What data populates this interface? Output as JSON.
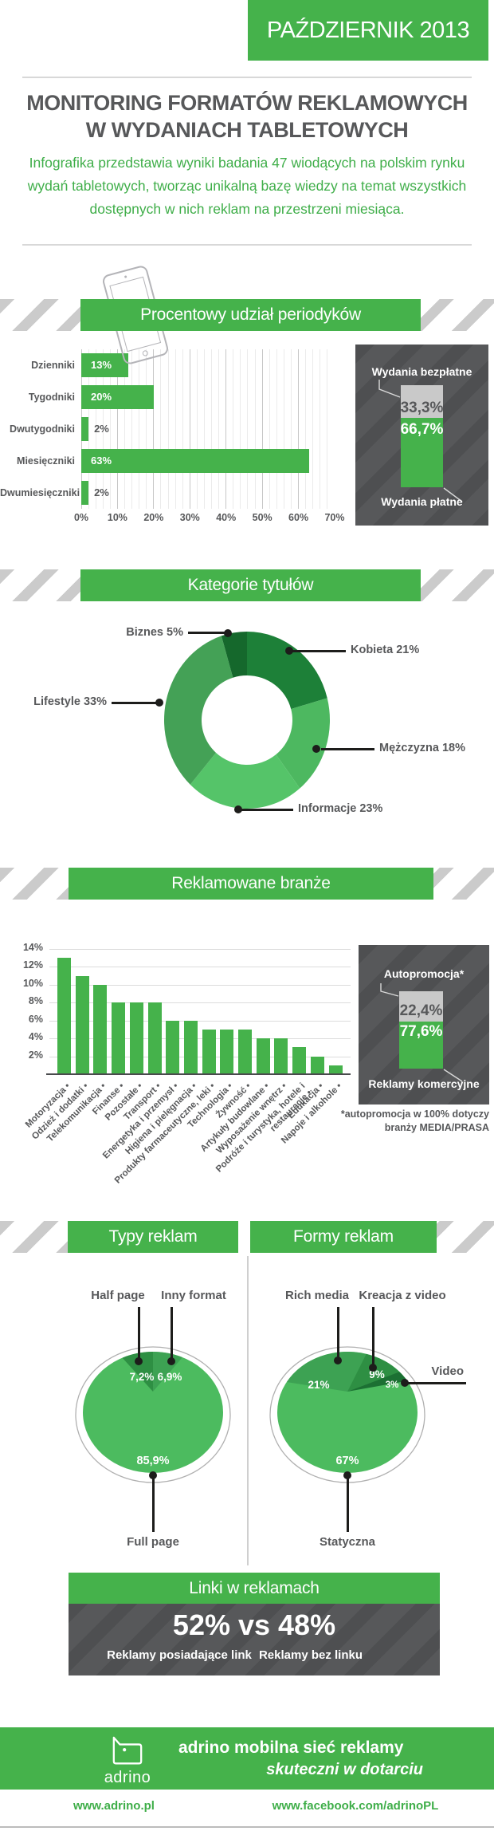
{
  "header": {
    "date_badge": "PAŹDZIERNIK 2013",
    "title_line1": "MONITORING FORMATÓW REKLAMOWYCH",
    "title_line2": "W WYDANIACH TABLETOWYCH",
    "intro": "Infografika przedstawia wyniki badania 47 wiodących na polskim rynku wydań tabletowych, tworząc unikalną bazę wiedzy na temat wszystkich dostępnych w nich reklam na przestrzeni miesiąca."
  },
  "section_titles": {
    "periodicals": "Procentowy udział periodyków",
    "categories": "Kategorie tytułów",
    "industries": "Reklamowane branże",
    "ad_types": "Typy reklam",
    "ad_forms": "Formy reklam",
    "links": "Linki w reklamach"
  },
  "free_paid_panel": {
    "top_label": "Wydania bezpłatne",
    "top_value": "33,3%",
    "bottom_value": "66,7%",
    "bottom_label": "Wydania płatne"
  },
  "promo_panel": {
    "top_label": "Autopromocja*",
    "top_value": "22,4%",
    "bottom_value": "77,6%",
    "bottom_label": "Reklamy komercyjne",
    "footnote_line1": "*autopromocja w 100% dotyczy",
    "footnote_line2": "branży MEDIA/PRASA"
  },
  "links_section": {
    "stat": "52% vs 48%",
    "left_label": "Reklamy posiadające link",
    "right_label": "Reklamy bez linku"
  },
  "footer": {
    "logo_text": "adrino",
    "tagline_bold": "adrino mobilna sieć reklamy",
    "tagline_italic": "skuteczni w dotarciu",
    "site_link": "www.adrino.pl",
    "facebook_link": "www.facebook.com/adrinoPL"
  },
  "colors": {
    "green": "#45b24b",
    "dark": "#57585a",
    "stripe_gray": "#c9c9c9",
    "link_green": "#3fae49"
  },
  "chart_data": [
    {
      "id": "periodicals",
      "type": "bar",
      "orientation": "horizontal",
      "title": "Procentowy udział periodyków",
      "categories": [
        "Dzienniki",
        "Tygodniki",
        "Dwutygodniki",
        "Miesięczniki",
        "Dwumiesięczniki"
      ],
      "values": [
        13,
        20,
        2,
        63,
        2
      ],
      "value_labels": [
        "13%",
        "20%",
        "2%",
        "63%",
        "2%"
      ],
      "xlim": [
        0,
        70
      ],
      "x_ticks": [
        0,
        10,
        20,
        30,
        40,
        50,
        60,
        70
      ],
      "x_tick_labels": [
        "0%",
        "10%",
        "20%",
        "30%",
        "40%",
        "50%",
        "60%",
        "70%"
      ],
      "bar_color": "#45b24b",
      "grid": true
    },
    {
      "id": "free-vs-paid",
      "type": "bar",
      "subtype": "stacked-column",
      "segments": [
        {
          "label": "Wydania bezpłatne",
          "value": 33.3,
          "display": "33,3%",
          "color": "#c9c9c9"
        },
        {
          "label": "Wydania płatne",
          "value": 66.7,
          "display": "66,7%",
          "color": "#45b24b"
        }
      ]
    },
    {
      "id": "title-categories",
      "type": "pie",
      "subtype": "donut",
      "title": "Kategorie tytułów",
      "labels": [
        "Kobieta",
        "Mężczyzna",
        "Informacje",
        "Lifestyle",
        "Biznes"
      ],
      "values": [
        21,
        18,
        23,
        33,
        5
      ],
      "display_labels": [
        "Kobieta 21%",
        "Mężczyzna 18%",
        "Informacje 23%",
        "Lifestyle 33%",
        "Biznes 5%"
      ],
      "colors": [
        "#1d8038",
        "#4db860",
        "#55c469",
        "#44a156",
        "#15682c"
      ]
    },
    {
      "id": "industries",
      "type": "bar",
      "orientation": "vertical",
      "title": "Reklamowane branże",
      "categories": [
        "Motoryzacja",
        "Odzież i dodatki",
        "Telekomunikacja",
        "Finanse",
        "Pozostałe",
        "Transport",
        "Energetyka i przemysł",
        "Higiena i pielęgnacja",
        "Produkty farmaceutyczne, leki",
        "Technologia",
        "Żywność",
        "Artykuły budowlane",
        "Wyposażenie wnętrz",
        "Podróże i turystyka, hotele i restauracje",
        "Edukacja",
        "Napoje i alkohole"
      ],
      "values": [
        13,
        11,
        10,
        8,
        8,
        8,
        6,
        6,
        5,
        5,
        5,
        4,
        4,
        3,
        2,
        1
      ],
      "ylim": [
        0,
        14
      ],
      "y_ticks": [
        2,
        4,
        6,
        8,
        10,
        12,
        14
      ],
      "y_tick_labels": [
        "2%",
        "4%",
        "6%",
        "8%",
        "10%",
        "12%",
        "14%"
      ],
      "bar_color": "#45b24b",
      "grid": true
    },
    {
      "id": "autopromo-vs-commercial",
      "type": "bar",
      "subtype": "stacked-column",
      "segments": [
        {
          "label": "Autopromocja*",
          "value": 22.4,
          "display": "22,4%",
          "color": "#c9c9c9"
        },
        {
          "label": "Reklamy komercyjne",
          "value": 77.6,
          "display": "77,6%",
          "color": "#45b24b"
        }
      ]
    },
    {
      "id": "ad-types",
      "type": "pie",
      "title": "Typy reklam",
      "labels": [
        "Inny format",
        "Full page",
        "Half page"
      ],
      "values": [
        6.9,
        85.9,
        7.2
      ],
      "display_values": [
        "6,9%",
        "85,9%",
        "7,2%"
      ],
      "colors": [
        "#3da253",
        "#4cbb5f",
        "#2e8f43"
      ]
    },
    {
      "id": "ad-forms",
      "type": "pie",
      "title": "Formy reklam",
      "labels": [
        "Kreacja z video",
        "Video",
        "Statyczna",
        "Rich media"
      ],
      "values": [
        9,
        3,
        67,
        21
      ],
      "display_values": [
        "9%",
        "3%",
        "67%",
        "21%"
      ],
      "colors": [
        "#2e8f43",
        "#1c7033",
        "#4cbb5f",
        "#3da253"
      ]
    },
    {
      "id": "links-in-ads",
      "type": "bar",
      "subtype": "comparison",
      "categories": [
        "Reklamy posiadające link",
        "Reklamy bez linku"
      ],
      "values": [
        52,
        48
      ],
      "display": "52% vs 48%"
    }
  ]
}
